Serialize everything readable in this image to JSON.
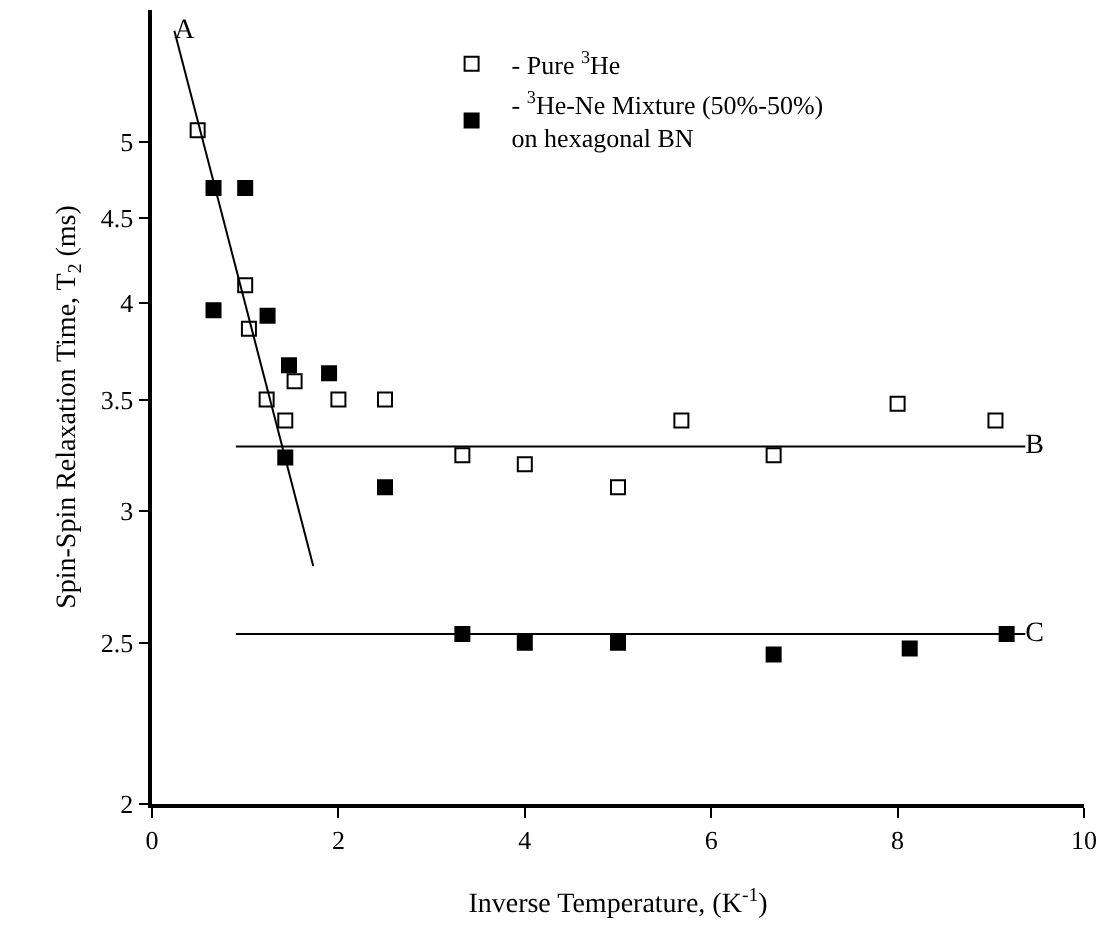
{
  "chart_data": {
    "type": "scatter",
    "xlabel": "Inverse Temperature, (K$^{-1}$)",
    "ylabel": "Spin-Spin Relaxation Time, T$_{2}$ (ms)",
    "log": "y",
    "xlim": [
      0,
      10
    ],
    "xticks": [
      0,
      2,
      4,
      6,
      8,
      10
    ],
    "ylim": [
      2,
      6
    ],
    "yticks": [
      2,
      2.5,
      3,
      3.5,
      4,
      4.5,
      5
    ],
    "grid": false,
    "legend": "top right",
    "series": [
      {
        "name": "- Pure $^{3}$He",
        "marker": "square-open",
        "color": "#000000",
        "x": [
          0.49,
          1.0,
          1.04,
          1.23,
          1.43,
          1.53,
          2.0,
          2.5,
          3.33,
          4.0,
          5.0,
          5.68,
          6.67,
          8.0,
          9.05
        ],
        "values": [
          5.08,
          4.1,
          3.86,
          3.5,
          3.4,
          3.59,
          3.5,
          3.5,
          3.24,
          3.2,
          3.1,
          3.4,
          3.24,
          3.48,
          3.4
        ]
      },
      {
        "name": "- $^{3}$He-Ne Mixture (50%-50%) on hexagonal BN",
        "marker": "square",
        "color": "#000000",
        "x": [
          0.66,
          1.0,
          0.66,
          1.24,
          1.47,
          1.9,
          1.43,
          2.5,
          3.33,
          4.0,
          5.0,
          6.67,
          8.13,
          9.17
        ],
        "values": [
          4.69,
          4.69,
          3.96,
          3.93,
          3.67,
          3.63,
          3.23,
          3.1,
          2.53,
          2.5,
          2.5,
          2.46,
          2.48,
          2.53
        ]
      },
      {
        "name": "A",
        "type": "line",
        "marker": "none",
        "line_style": "solid",
        "color": "#000000",
        "x": [
          0.24,
          1.73
        ],
        "values": [
          5.83,
          2.78
        ]
      },
      {
        "name": "B",
        "type": "line",
        "marker": "none",
        "line_style": "solid",
        "color": "#000000",
        "x": [
          0.9,
          9.37
        ],
        "values": [
          3.28,
          3.28
        ]
      },
      {
        "name": "C",
        "type": "line",
        "marker": "none",
        "line_style": "solid",
        "color": "#000000",
        "x": [
          0.9,
          9.37
        ],
        "values": [
          2.53,
          2.53
        ]
      }
    ]
  }
}
